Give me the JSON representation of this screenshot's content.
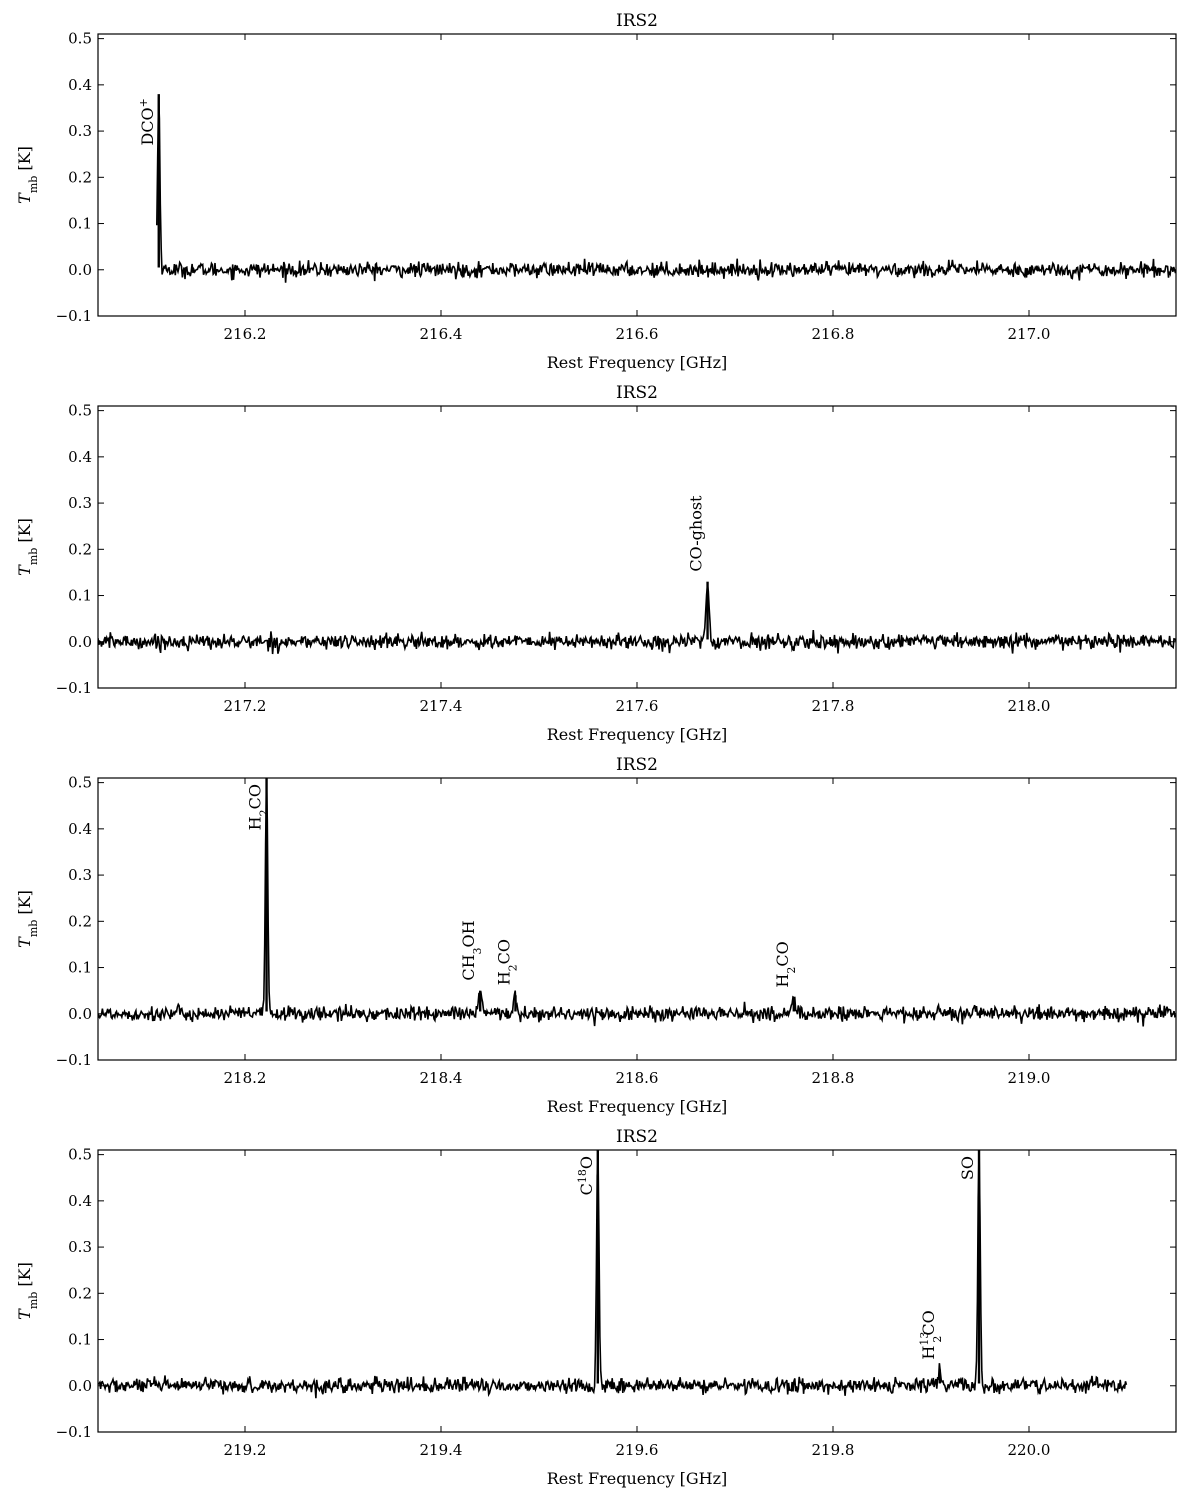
{
  "chart_data": [
    {
      "type": "line",
      "title": "IRS2",
      "xlabel": "Rest Frequency [GHz]",
      "ylabel": "T_mb [K]",
      "xlim": [
        216.05,
        217.15
      ],
      "ylim": [
        -0.1,
        0.51
      ],
      "xticks": [
        216.2,
        216.4,
        216.6,
        216.8,
        217.0
      ],
      "xtick_labels": [
        "216.2",
        "216.4",
        "216.6",
        "216.8",
        "217.0"
      ],
      "yticks": [
        -0.1,
        0.0,
        0.1,
        0.2,
        0.3,
        0.4,
        0.5
      ],
      "ytick_labels": [
        "−0.1",
        "0.0",
        "0.1",
        "0.2",
        "0.3",
        "0.4",
        "0.5"
      ],
      "data_xrange": [
        216.11,
        217.15
      ],
      "baseline": 0.0,
      "noise": 0.008,
      "lines": [
        {
          "label": "DCO+",
          "x": 216.112,
          "peak": 0.38
        }
      ]
    },
    {
      "type": "line",
      "title": "IRS2",
      "xlabel": "Rest Frequency [GHz]",
      "ylabel": "T_mb [K]",
      "xlim": [
        217.05,
        218.15
      ],
      "ylim": [
        -0.1,
        0.51
      ],
      "xticks": [
        217.2,
        217.4,
        217.6,
        217.8,
        218.0
      ],
      "xtick_labels": [
        "217.2",
        "217.4",
        "217.6",
        "217.8",
        "218.0"
      ],
      "yticks": [
        -0.1,
        0.0,
        0.1,
        0.2,
        0.3,
        0.4,
        0.5
      ],
      "ytick_labels": [
        "−0.1",
        "0.0",
        "0.1",
        "0.2",
        "0.3",
        "0.4",
        "0.5"
      ],
      "data_xrange": [
        217.05,
        218.15
      ],
      "baseline": 0.0,
      "noise": 0.008,
      "lines": [
        {
          "label": "CO-ghost",
          "x": 217.672,
          "peak": 0.13
        }
      ]
    },
    {
      "type": "line",
      "title": "IRS2",
      "xlabel": "Rest Frequency [GHz]",
      "ylabel": "T_mb [K]",
      "xlim": [
        218.05,
        219.15
      ],
      "ylim": [
        -0.1,
        0.51
      ],
      "xticks": [
        218.2,
        218.4,
        218.6,
        218.8,
        219.0
      ],
      "xtick_labels": [
        "218.2",
        "218.4",
        "218.6",
        "218.8",
        "219.0"
      ],
      "yticks": [
        -0.1,
        0.0,
        0.1,
        0.2,
        0.3,
        0.4,
        0.5
      ],
      "ytick_labels": [
        "−0.1",
        "0.0",
        "0.1",
        "0.2",
        "0.3",
        "0.4",
        "0.5"
      ],
      "data_xrange": [
        218.05,
        219.15
      ],
      "baseline": 0.0,
      "noise": 0.008,
      "lines": [
        {
          "label": "H2CO",
          "x": 218.222,
          "peak": 0.51
        },
        {
          "label": "CH3OH",
          "x": 218.44,
          "peak": 0.05
        },
        {
          "label": "H2CO",
          "x": 218.476,
          "peak": 0.04
        },
        {
          "label": "H2CO",
          "x": 218.76,
          "peak": 0.035
        }
      ]
    },
    {
      "type": "line",
      "title": "IRS2",
      "xlabel": "Rest Frequency [GHz]",
      "ylabel": "T_mb [K]",
      "xlim": [
        219.05,
        220.15
      ],
      "ylim": [
        -0.1,
        0.51
      ],
      "xticks": [
        219.2,
        219.4,
        219.6,
        219.8,
        220.0
      ],
      "xtick_labels": [
        "219.2",
        "219.4",
        "219.6",
        "219.8",
        "220.0"
      ],
      "yticks": [
        -0.1,
        0.0,
        0.1,
        0.2,
        0.3,
        0.4,
        0.5
      ],
      "ytick_labels": [
        "−0.1",
        "0.0",
        "0.1",
        "0.2",
        "0.3",
        "0.4",
        "0.5"
      ],
      "data_xrange": [
        219.05,
        220.1
      ],
      "baseline": 0.0,
      "noise": 0.008,
      "lines": [
        {
          "label": "C18O",
          "x": 219.56,
          "peak": 0.51
        },
        {
          "label": "H2 13CO",
          "x": 219.909,
          "peak": 0.035
        },
        {
          "label": "SO",
          "x": 219.949,
          "peak": 0.51
        }
      ]
    }
  ]
}
